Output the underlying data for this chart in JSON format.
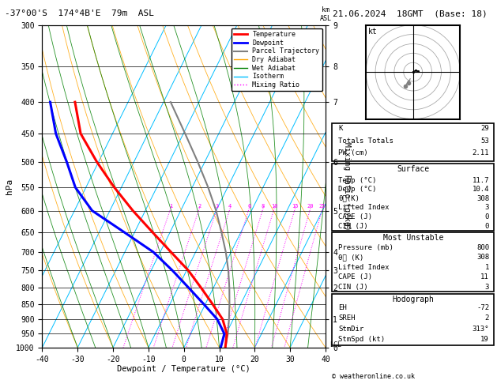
{
  "title_left": "-37°00'S  174°4B'E  79m  ASL",
  "title_right": "21.06.2024  18GMT  (Base: 18)",
  "xlabel": "Dewpoint / Temperature (°C)",
  "ylabel_left": "hPa",
  "pressure_levels": [
    300,
    350,
    400,
    450,
    500,
    550,
    600,
    650,
    700,
    750,
    800,
    850,
    900,
    950,
    1000
  ],
  "T_min": -40,
  "T_max": 40,
  "P_min": 300,
  "P_max": 1000,
  "isotherm_color": "#00BFFF",
  "dry_adiabat_color": "#FFA500",
  "wet_adiabat_color": "#008000",
  "mixing_ratio_color": "#FF00FF",
  "mixing_ratio_values": [
    1,
    2,
    3,
    4,
    6,
    8,
    10,
    15,
    20,
    25
  ],
  "temp_profile_T": [
    11.7,
    10.2,
    7.0,
    2.0,
    -3.5,
    -9.5,
    -17.0,
    -25.0,
    -33.5,
    -42.0,
    -50.5,
    -59.0,
    -65.0
  ],
  "temp_profile_P": [
    1000,
    950,
    900,
    850,
    800,
    750,
    700,
    650,
    600,
    550,
    500,
    450,
    400
  ],
  "dewp_profile_T": [
    10.4,
    9.5,
    5.5,
    -0.5,
    -7.0,
    -14.0,
    -22.0,
    -33.0,
    -45.0,
    -53.0,
    -59.0,
    -66.0,
    -72.0
  ],
  "dewp_profile_P": [
    1000,
    950,
    900,
    850,
    800,
    750,
    700,
    650,
    600,
    550,
    500,
    450,
    400
  ],
  "parcel_T": [
    11.7,
    10.5,
    8.8,
    6.8,
    4.5,
    1.8,
    -1.5,
    -5.5,
    -10.0,
    -15.5,
    -22.0,
    -29.5,
    -38.0
  ],
  "parcel_P": [
    1000,
    950,
    900,
    850,
    800,
    750,
    700,
    650,
    600,
    550,
    500,
    450,
    400
  ],
  "temp_color": "#FF0000",
  "dewp_color": "#0000FF",
  "parcel_color": "#808080",
  "lcl_pressure": 990,
  "km_ticks_P": [
    300,
    350,
    400,
    500,
    600,
    700,
    750,
    800,
    900,
    1000
  ],
  "km_ticks_val": [
    9,
    8,
    7,
    6,
    5,
    4,
    3,
    2,
    1,
    0
  ],
  "stats": {
    "K": 29,
    "Totals_Totals": 53,
    "PW_cm": 2.11,
    "Surface_Temp": 11.7,
    "Surface_Dewp": 10.4,
    "Surface_theta_e": 308,
    "Surface_LI": 3,
    "Surface_CAPE": 0,
    "Surface_CIN": 0,
    "MU_Pressure": 800,
    "MU_theta_e": 308,
    "MU_LI": 1,
    "MU_CAPE": 11,
    "MU_CIN": 3,
    "EH": -72,
    "SREH": 2,
    "StmDir": 313,
    "StmSpd": 19
  }
}
